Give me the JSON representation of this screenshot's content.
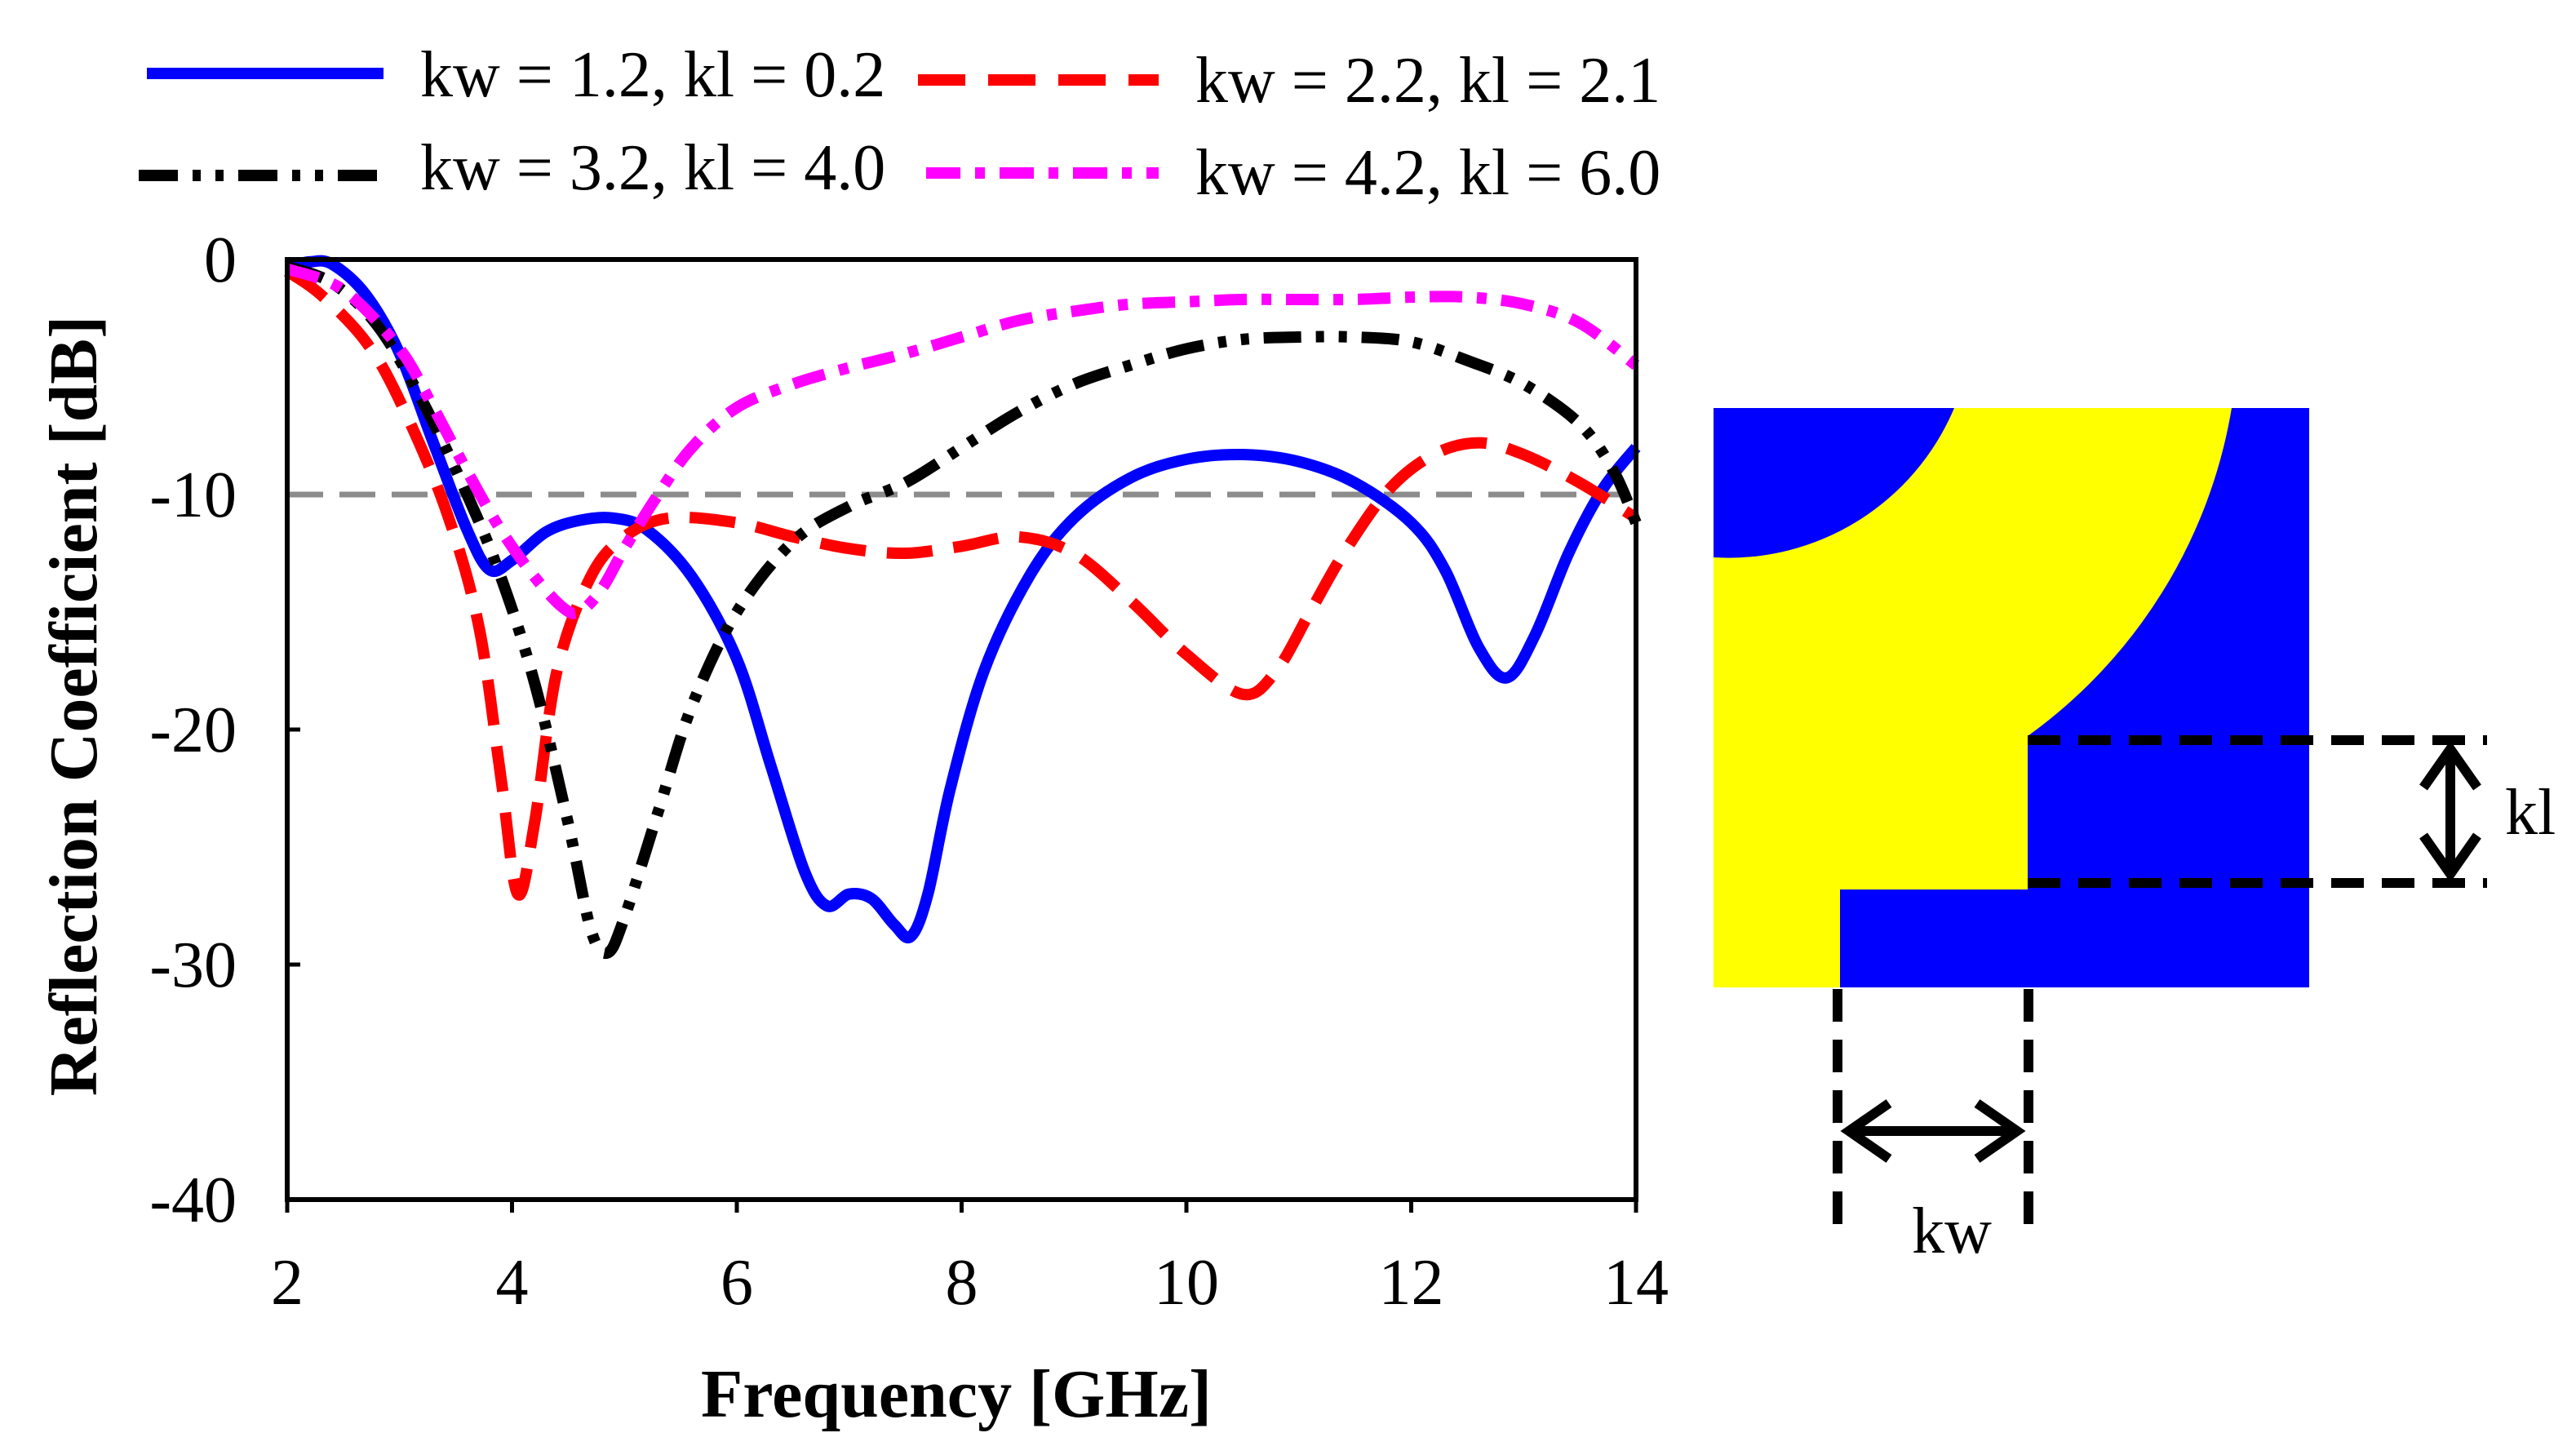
{
  "chart_data": {
    "type": "line",
    "title": "",
    "xlabel": "Frequency [GHz]",
    "ylabel": "Reflection Coefficient [dB]",
    "xlim": [
      2,
      14
    ],
    "ylim": [
      -40,
      0
    ],
    "xticks": [
      2,
      4,
      6,
      8,
      10,
      12,
      14
    ],
    "yticks": [
      0,
      -10,
      -20,
      -30,
      -40
    ],
    "reference_line": {
      "y": -10,
      "color": "#8c8c8c",
      "style": "dashed"
    },
    "legend_position": "top",
    "series": [
      {
        "name": "kw = 1.2, kl = 0.2",
        "color": "#0000ff",
        "style": "solid",
        "points": [
          [
            2.0,
            -0.3
          ],
          [
            2.2,
            -0.1
          ],
          [
            2.4,
            -0.2
          ],
          [
            2.7,
            -1.5
          ],
          [
            3.0,
            -4.0
          ],
          [
            3.3,
            -7.8
          ],
          [
            3.6,
            -11.5
          ],
          [
            3.8,
            -13.2
          ],
          [
            4.0,
            -12.8
          ],
          [
            4.3,
            -11.6
          ],
          [
            4.6,
            -11.1
          ],
          [
            4.9,
            -11.0
          ],
          [
            5.2,
            -11.5
          ],
          [
            5.6,
            -13.5
          ],
          [
            6.0,
            -17.0
          ],
          [
            6.3,
            -21.5
          ],
          [
            6.6,
            -26.0
          ],
          [
            6.8,
            -27.5
          ],
          [
            7.0,
            -27.0
          ],
          [
            7.2,
            -27.2
          ],
          [
            7.4,
            -28.3
          ],
          [
            7.55,
            -28.8
          ],
          [
            7.7,
            -27.0
          ],
          [
            7.9,
            -22.5
          ],
          [
            8.2,
            -17.5
          ],
          [
            8.6,
            -13.5
          ],
          [
            9.0,
            -11.0
          ],
          [
            9.5,
            -9.3
          ],
          [
            10.0,
            -8.5
          ],
          [
            10.5,
            -8.3
          ],
          [
            11.0,
            -8.6
          ],
          [
            11.5,
            -9.5
          ],
          [
            12.0,
            -11.2
          ],
          [
            12.3,
            -13.2
          ],
          [
            12.6,
            -16.5
          ],
          [
            12.85,
            -17.8
          ],
          [
            13.1,
            -16.0
          ],
          [
            13.4,
            -12.5
          ],
          [
            13.7,
            -9.8
          ],
          [
            14.0,
            -8.0
          ]
        ]
      },
      {
        "name": "kw = 2.2, kl = 2.1",
        "color": "#ff0000",
        "style": "dashed",
        "points": [
          [
            2.0,
            -0.5
          ],
          [
            2.3,
            -1.5
          ],
          [
            2.7,
            -3.5
          ],
          [
            3.0,
            -6.0
          ],
          [
            3.4,
            -10.5
          ],
          [
            3.7,
            -15.5
          ],
          [
            3.9,
            -22.0
          ],
          [
            4.05,
            -27.0
          ],
          [
            4.2,
            -24.0
          ],
          [
            4.4,
            -17.5
          ],
          [
            4.7,
            -13.5
          ],
          [
            5.0,
            -11.8
          ],
          [
            5.4,
            -11.0
          ],
          [
            6.0,
            -11.2
          ],
          [
            6.5,
            -11.8
          ],
          [
            7.0,
            -12.3
          ],
          [
            7.5,
            -12.5
          ],
          [
            8.0,
            -12.2
          ],
          [
            8.5,
            -11.8
          ],
          [
            9.0,
            -12.5
          ],
          [
            9.5,
            -14.5
          ],
          [
            10.0,
            -16.8
          ],
          [
            10.5,
            -18.5
          ],
          [
            10.8,
            -17.5
          ],
          [
            11.1,
            -15.0
          ],
          [
            11.4,
            -12.5
          ],
          [
            11.8,
            -9.8
          ],
          [
            12.2,
            -8.3
          ],
          [
            12.6,
            -7.8
          ],
          [
            13.0,
            -8.3
          ],
          [
            13.5,
            -9.5
          ],
          [
            14.0,
            -11.0
          ]
        ]
      },
      {
        "name": "kw = 3.2, kl = 4.0",
        "color": "#000000",
        "style": "dash-dot-dot",
        "points": [
          [
            2.0,
            -0.3
          ],
          [
            2.4,
            -1.0
          ],
          [
            2.8,
            -2.8
          ],
          [
            3.2,
            -6.0
          ],
          [
            3.6,
            -10.0
          ],
          [
            3.9,
            -13.5
          ],
          [
            4.2,
            -18.0
          ],
          [
            4.5,
            -24.0
          ],
          [
            4.7,
            -28.5
          ],
          [
            4.85,
            -29.5
          ],
          [
            5.0,
            -28.0
          ],
          [
            5.3,
            -23.5
          ],
          [
            5.6,
            -19.0
          ],
          [
            6.0,
            -15.0
          ],
          [
            6.5,
            -12.0
          ],
          [
            7.0,
            -10.5
          ],
          [
            7.5,
            -9.5
          ],
          [
            8.0,
            -8.0
          ],
          [
            8.5,
            -6.5
          ],
          [
            9.0,
            -5.3
          ],
          [
            9.5,
            -4.5
          ],
          [
            10.0,
            -3.8
          ],
          [
            10.5,
            -3.4
          ],
          [
            11.0,
            -3.3
          ],
          [
            11.5,
            -3.3
          ],
          [
            12.0,
            -3.5
          ],
          [
            12.5,
            -4.3
          ],
          [
            13.0,
            -5.3
          ],
          [
            13.5,
            -7.0
          ],
          [
            13.8,
            -9.0
          ],
          [
            14.0,
            -11.2
          ]
        ]
      },
      {
        "name": "kw = 4.2, kl = 6.0",
        "color": "#ff00ff",
        "style": "dash-dot",
        "points": [
          [
            2.0,
            -0.4
          ],
          [
            2.5,
            -1.3
          ],
          [
            3.0,
            -3.8
          ],
          [
            3.3,
            -6.3
          ],
          [
            3.6,
            -9.0
          ],
          [
            3.9,
            -11.5
          ],
          [
            4.2,
            -13.5
          ],
          [
            4.45,
            -14.8
          ],
          [
            4.6,
            -15.0
          ],
          [
            4.8,
            -14.0
          ],
          [
            5.0,
            -12.3
          ],
          [
            5.3,
            -10.0
          ],
          [
            5.6,
            -8.0
          ],
          [
            6.0,
            -6.3
          ],
          [
            6.5,
            -5.3
          ],
          [
            7.0,
            -4.6
          ],
          [
            7.5,
            -4.0
          ],
          [
            8.0,
            -3.3
          ],
          [
            8.5,
            -2.6
          ],
          [
            9.0,
            -2.2
          ],
          [
            9.5,
            -1.9
          ],
          [
            10.0,
            -1.8
          ],
          [
            10.5,
            -1.7
          ],
          [
            11.0,
            -1.7
          ],
          [
            11.5,
            -1.7
          ],
          [
            12.0,
            -1.6
          ],
          [
            12.5,
            -1.6
          ],
          [
            13.0,
            -1.9
          ],
          [
            13.5,
            -2.7
          ],
          [
            14.0,
            -4.5
          ]
        ]
      }
    ]
  },
  "diagram": {
    "labels": {
      "kl": "kl",
      "kw": "kw"
    },
    "colors": {
      "substrate": "#ffff00",
      "metal": "#0000ff"
    }
  }
}
